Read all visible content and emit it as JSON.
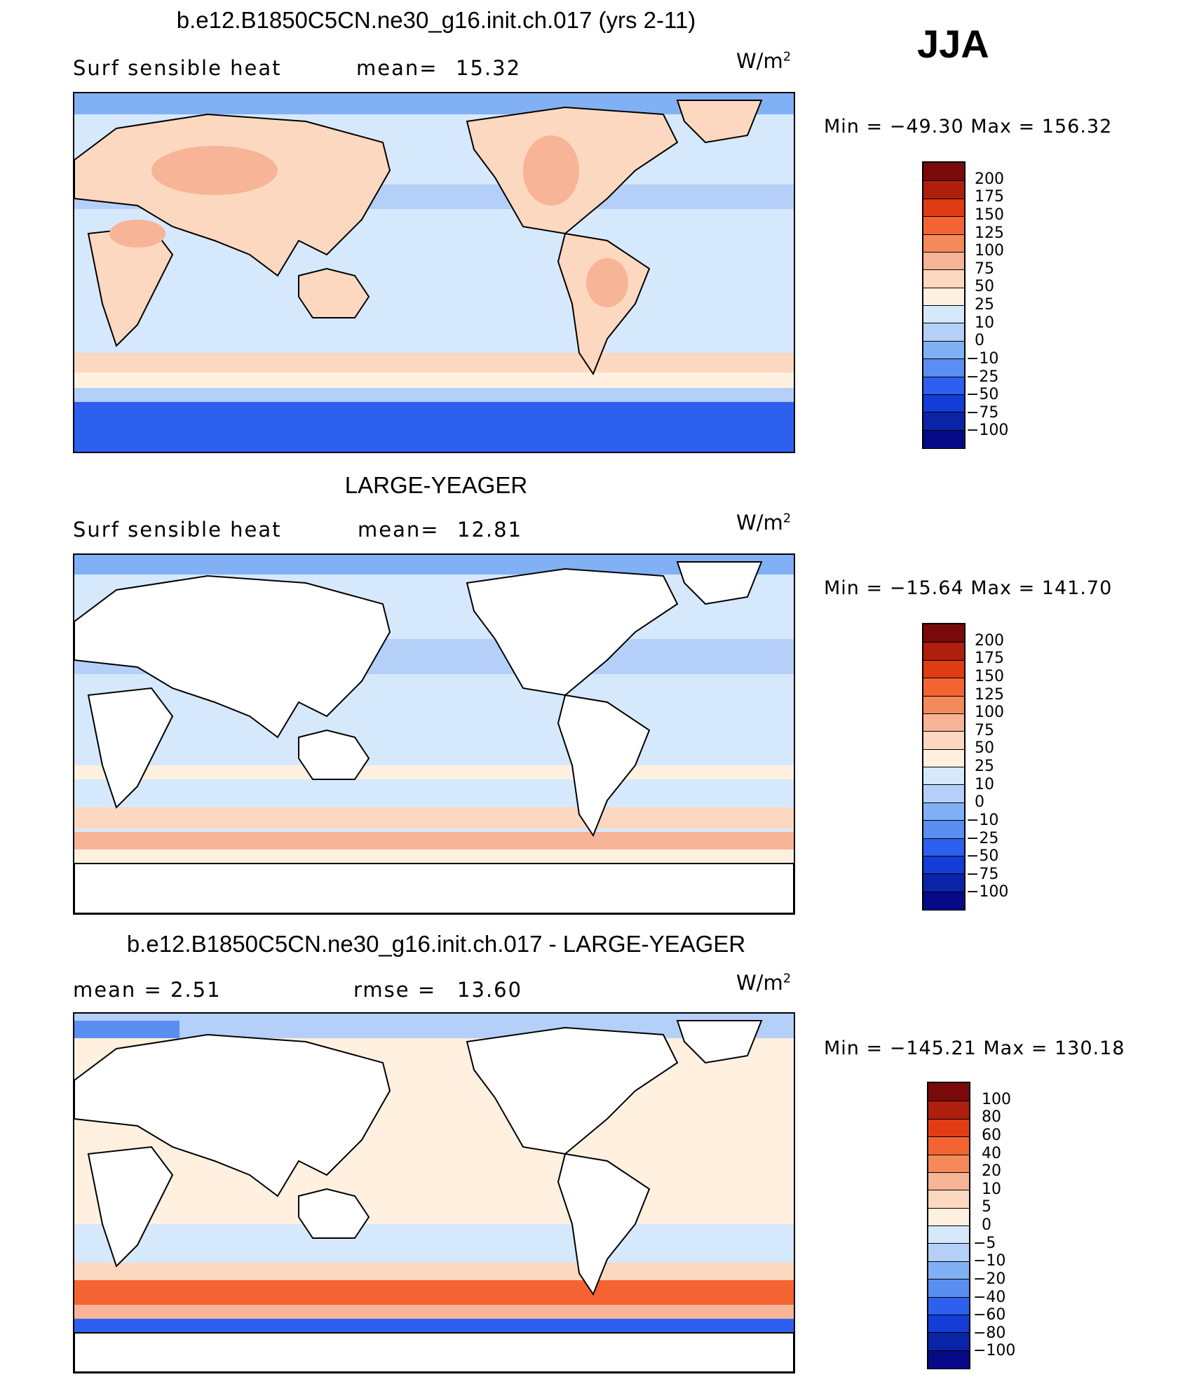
{
  "season": "JJA",
  "panels": [
    {
      "title": "b.e12.B1850C5CN.ne30_g16.init.ch.017 (yrs 2-11)",
      "left_text": "Surf  sensible  heat",
      "right_label": "mean=",
      "right_value": "15.32",
      "units": "W/m",
      "units_sup": "2",
      "min_max": "Min  =  −49.30  Max  =  156.32",
      "colorbar": {
        "colors": [
          "#7a0a0a",
          "#b01e0e",
          "#e03c14",
          "#f46432",
          "#f48a5a",
          "#f8b496",
          "#fcd8c0",
          "#fff0e0",
          "#d6e8fc",
          "#b4d0f8",
          "#82b0f4",
          "#5a8ef0",
          "#2e60f0",
          "#143cd6",
          "#0a24a8",
          "#060a86"
        ],
        "labels": [
          "200",
          "175",
          "150",
          "125",
          "100",
          "75",
          "50",
          "25",
          "10",
          "0",
          "−10",
          "−25",
          "−50",
          "−75",
          "−100"
        ]
      }
    },
    {
      "title": "LARGE-YEAGER",
      "left_text": "Surf  sensible  heat",
      "right_label": "mean=",
      "right_value": "12.81",
      "units": "W/m",
      "units_sup": "2",
      "min_max": "Min  =  −15.64  Max  =  141.70",
      "colorbar": {
        "colors": [
          "#7a0a0a",
          "#b01e0e",
          "#e03c14",
          "#f46432",
          "#f48a5a",
          "#f8b496",
          "#fcd8c0",
          "#fff0e0",
          "#d6e8fc",
          "#b4d0f8",
          "#82b0f4",
          "#5a8ef0",
          "#2e60f0",
          "#143cd6",
          "#0a24a8",
          "#060a86"
        ],
        "labels": [
          "200",
          "175",
          "150",
          "125",
          "100",
          "75",
          "50",
          "25",
          "10",
          "0",
          "−10",
          "−25",
          "−50",
          "−75",
          "−100"
        ]
      }
    },
    {
      "title": "b.e12.B1850C5CN.ne30_g16.init.ch.017 - LARGE-YEAGER",
      "left_text": "mean =     2.51",
      "right_label": "rmse =",
      "right_value": "13.60",
      "units": "W/m",
      "units_sup": "2",
      "min_max": "Min  =  −145.21  Max  =  130.18",
      "colorbar": {
        "colors": [
          "#7a0a0a",
          "#b01e0e",
          "#e03c14",
          "#f46432",
          "#f48a5a",
          "#f8b496",
          "#fcd8c0",
          "#fff0e0",
          "#d6e8fc",
          "#b4d0f8",
          "#82b0f4",
          "#5a8ef0",
          "#2e60f0",
          "#143cd6",
          "#0a24a8",
          "#060a86"
        ],
        "labels": [
          "100",
          "80",
          "60",
          "40",
          "20",
          "10",
          "5",
          "0",
          "−5",
          "−10",
          "−20",
          "−40",
          "−60",
          "−80",
          "−100"
        ]
      }
    }
  ]
}
